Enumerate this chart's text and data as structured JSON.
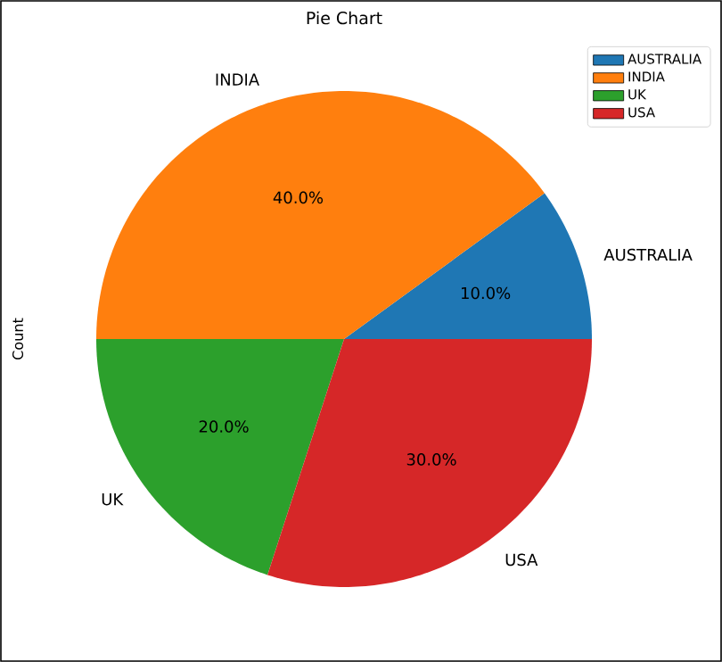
{
  "chart_data": {
    "type": "pie",
    "title": "Pie Chart",
    "ylabel": "Count",
    "categories": [
      "AUSTRALIA",
      "INDIA",
      "UK",
      "USA"
    ],
    "values": [
      10,
      40,
      20,
      30
    ],
    "value_labels": [
      "10.0%",
      "40.0%",
      "20.0%",
      "30.0%"
    ],
    "colors": [
      "#1f77b4",
      "#ff7f0e",
      "#2ca02c",
      "#d62728"
    ],
    "legend": "top right"
  }
}
